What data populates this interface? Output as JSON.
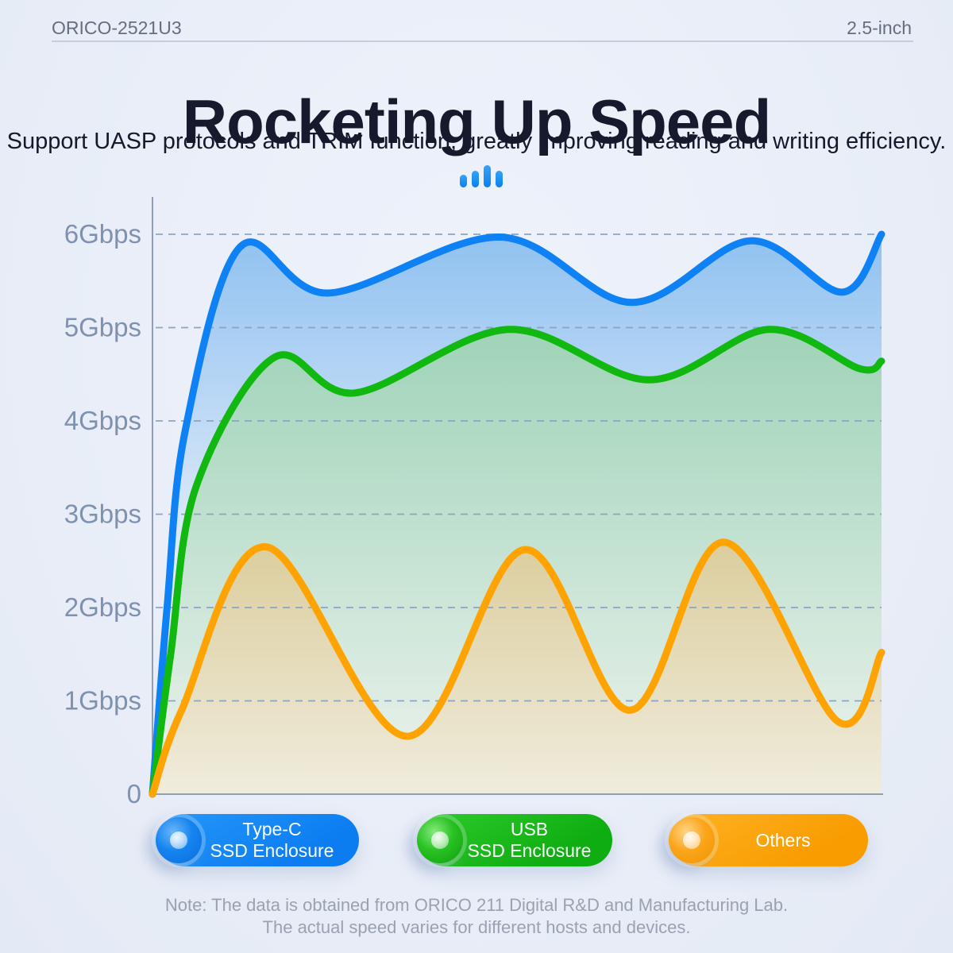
{
  "header": {
    "left": "ORICO-2521U3",
    "right": "2.5-inch"
  },
  "title": "Rocketing Up Speed",
  "subtitle": "Support UASP protocols and TRIM function, greatly improving reading and writing efficiency.",
  "icon": {
    "name": "bars-signal-icon",
    "color": "#1490f5"
  },
  "legend": {
    "items": [
      {
        "line1": "Type-C",
        "line2": "SSD Enclosure",
        "color": "#0d82f2"
      },
      {
        "line1": "USB",
        "line2": "SSD Enclosure",
        "color": "#12b712"
      },
      {
        "line1": "Others",
        "line2": "",
        "color": "#ffa402"
      }
    ]
  },
  "note": {
    "line1": "Note: The data is obtained from ORICO 211 Digital R&D and Manufacturing Lab.",
    "line2": "The actual speed varies for different hosts and devices."
  },
  "chart_data": {
    "type": "area",
    "title": "",
    "xlabel": "",
    "ylabel": "Gbps",
    "ylim": [
      0,
      6.4
    ],
    "grid": "horizontal dashed",
    "legend_position": "bottom",
    "x_axis": "unlabeled time axis, 0-100 percent",
    "y_ticks": [
      {
        "value": 6,
        "label": "6Gbps"
      },
      {
        "value": 5,
        "label": "5Gbps"
      },
      {
        "value": 4,
        "label": "4Gbps"
      },
      {
        "value": 3,
        "label": "3Gbps"
      },
      {
        "value": 2,
        "label": "2Gbps"
      },
      {
        "value": 1,
        "label": "1Gbps"
      },
      {
        "value": 0,
        "label": "0"
      }
    ],
    "series": [
      {
        "name": "Type-C SSD Enclosure",
        "color": "#0e82f4",
        "points": [
          [
            0,
            0
          ],
          [
            2,
            2.0
          ],
          [
            4.5,
            3.9
          ],
          [
            12.1,
            5.87
          ],
          [
            24.1,
            5.37
          ],
          [
            47.7,
            5.97
          ],
          [
            65.7,
            5.27
          ],
          [
            82,
            5.93
          ],
          [
            94.6,
            5.38
          ],
          [
            100,
            6.0
          ]
        ]
      },
      {
        "name": "USB SSD Enclosure",
        "color": "#10b80f",
        "points": [
          [
            0,
            0
          ],
          [
            2.5,
            1.5
          ],
          [
            6,
            3.3
          ],
          [
            16.7,
            4.68
          ],
          [
            27.8,
            4.3
          ],
          [
            48.8,
            4.98
          ],
          [
            68.1,
            4.44
          ],
          [
            84.5,
            4.98
          ],
          [
            97,
            4.56
          ],
          [
            100,
            4.64
          ]
        ]
      },
      {
        "name": "Others",
        "color": "#ffa303",
        "points": [
          [
            0,
            0
          ],
          [
            4,
            0.9
          ],
          [
            15.6,
            2.65
          ],
          [
            34.9,
            0.62
          ],
          [
            51,
            2.62
          ],
          [
            65.5,
            0.9
          ],
          [
            78.4,
            2.7
          ],
          [
            94,
            0.78
          ],
          [
            100,
            1.52
          ]
        ]
      }
    ]
  }
}
